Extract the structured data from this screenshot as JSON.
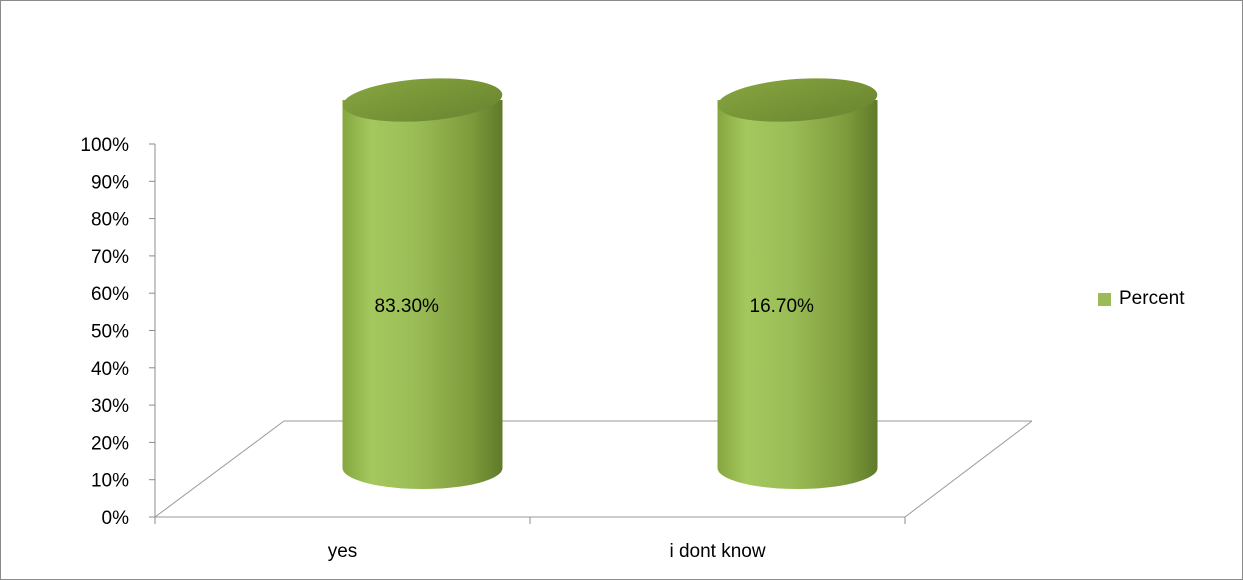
{
  "chart_data": {
    "type": "bar",
    "style": "3d-cylinder",
    "categories": [
      "yes",
      "i dont know"
    ],
    "series": [
      {
        "name": "Percent",
        "values": [
          83.3,
          16.7
        ],
        "color": "#9bbb59"
      }
    ],
    "data_labels": [
      "83.30%",
      "16.70%"
    ],
    "y_ticks": [
      "0%",
      "10%",
      "20%",
      "30%",
      "40%",
      "50%",
      "60%",
      "70%",
      "80%",
      "90%",
      "100%"
    ],
    "ylim": [
      0,
      100
    ],
    "grid": false,
    "legend_position": "right"
  }
}
